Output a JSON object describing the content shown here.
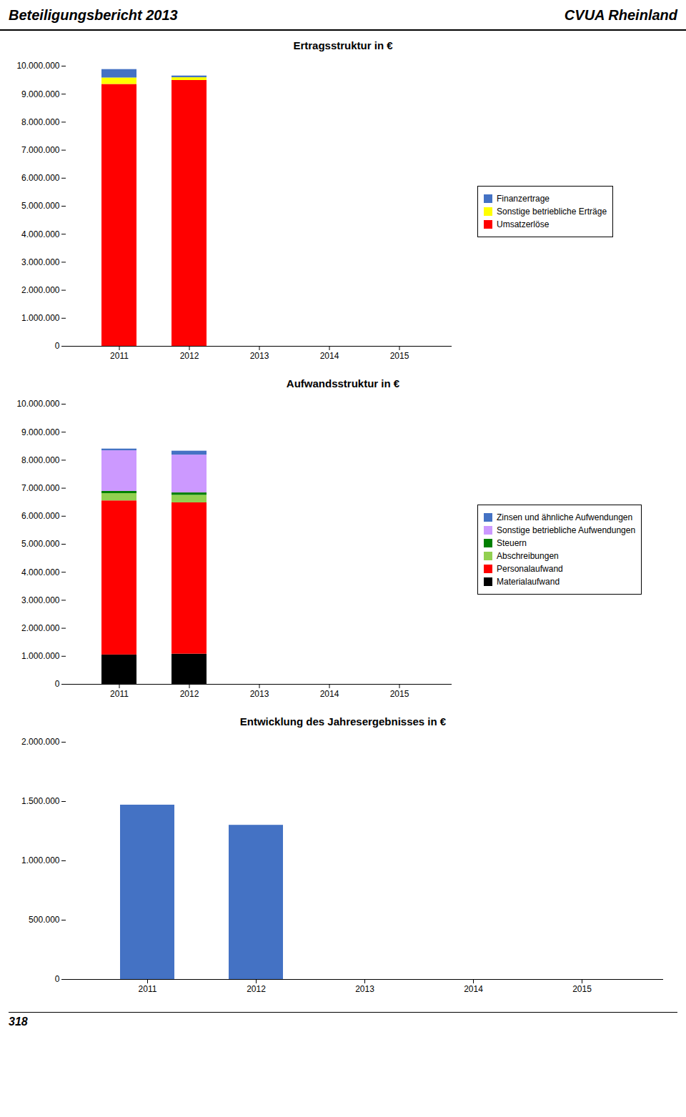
{
  "annotations": [
    "Beteiligungsbericht 2013",
    "CVUA Rheinland",
    "318"
  ],
  "chart_data": [
    {
      "type": "bar",
      "stacked": true,
      "title": "Ertragsstruktur in €",
      "categories": [
        "2011",
        "2012",
        "2013",
        "2014",
        "2015"
      ],
      "series": [
        {
          "name": "Umsatzerlöse",
          "color": "#FF0000",
          "values": [
            9350000,
            9490000,
            0,
            0,
            0
          ]
        },
        {
          "name": "Sonstige betriebliche Erträge",
          "color": "#FFFF00",
          "values": [
            230000,
            100000,
            0,
            0,
            0
          ]
        },
        {
          "name": "Finanzertrage",
          "color": "#4472C4",
          "values": [
            300000,
            60000,
            0,
            0,
            0
          ]
        }
      ],
      "ylim": [
        0,
        10000000
      ],
      "yticks": [
        0,
        {
          "value": 1000000,
          "label": "1.000.000"
        },
        {
          "value": 2000000,
          "label": "2.000.000"
        },
        {
          "value": 3000000,
          "label": "3.000.000"
        },
        {
          "value": 4000000,
          "label": "4.000.000"
        },
        {
          "value": 5000000,
          "label": "5.000.000"
        },
        {
          "value": 6000000,
          "label": "6.000.000"
        },
        {
          "value": 7000000,
          "label": "7.000.000"
        },
        {
          "value": 8000000,
          "label": "8.000.000"
        },
        {
          "value": 9000000,
          "label": "9.000.000"
        },
        {
          "value": 10000000,
          "label": "10.000.000"
        }
      ],
      "legend": "right",
      "grid": false
    },
    {
      "type": "bar",
      "stacked": true,
      "title": "Aufwandsstruktur in €",
      "categories": [
        "2011",
        "2012",
        "2013",
        "2014",
        "2015"
      ],
      "series": [
        {
          "name": "Materialaufwand",
          "color": "#000000",
          "values": [
            1050000,
            1080000,
            0,
            0,
            0
          ]
        },
        {
          "name": "Personalaufwand",
          "color": "#FF0000",
          "values": [
            5500000,
            5400000,
            0,
            0,
            0
          ]
        },
        {
          "name": "Abschreibungen",
          "color": "#92D050",
          "values": [
            260000,
            270000,
            0,
            0,
            0
          ]
        },
        {
          "name": "Steuern",
          "color": "#008000",
          "values": [
            80000,
            85000,
            0,
            0,
            0
          ]
        },
        {
          "name": "Sonstige betriebliche Aufwendungen",
          "color": "#CC99FF",
          "values": [
            1450000,
            1350000,
            0,
            0,
            0
          ]
        },
        {
          "name": "Zinsen und ähnliche Aufwendungen",
          "color": "#4472C4",
          "values": [
            60000,
            140000,
            0,
            0,
            0
          ]
        }
      ],
      "ylim": [
        0,
        10000000
      ],
      "yticks": [
        0,
        {
          "value": 1000000,
          "label": "1.000.000"
        },
        {
          "value": 2000000,
          "label": "2.000.000"
        },
        {
          "value": 3000000,
          "label": "3.000.000"
        },
        {
          "value": 4000000,
          "label": "4.000.000"
        },
        {
          "value": 5000000,
          "label": "5.000.000"
        },
        {
          "value": 6000000,
          "label": "6.000.000"
        },
        {
          "value": 7000000,
          "label": "7.000.000"
        },
        {
          "value": 8000000,
          "label": "8.000.000"
        },
        {
          "value": 9000000,
          "label": "9.000.000"
        },
        {
          "value": 10000000,
          "label": "10.000.000"
        }
      ],
      "legend": "right",
      "grid": false
    },
    {
      "type": "bar",
      "title": "Entwicklung des Jahresergebnisses in €",
      "categories": [
        "2011",
        "2012",
        "2013",
        "2014",
        "2015"
      ],
      "values": [
        1470000,
        1300000,
        0,
        0,
        0
      ],
      "color": "#4472C4",
      "ylim": [
        0,
        2000000
      ],
      "yticks": [
        0,
        {
          "value": 500000,
          "label": "500.000"
        },
        {
          "value": 1000000,
          "label": "1.000.000"
        },
        {
          "value": 1500000,
          "label": "1.500.000"
        },
        {
          "value": 2000000,
          "label": "2.000.000"
        }
      ],
      "grid": false
    }
  ]
}
